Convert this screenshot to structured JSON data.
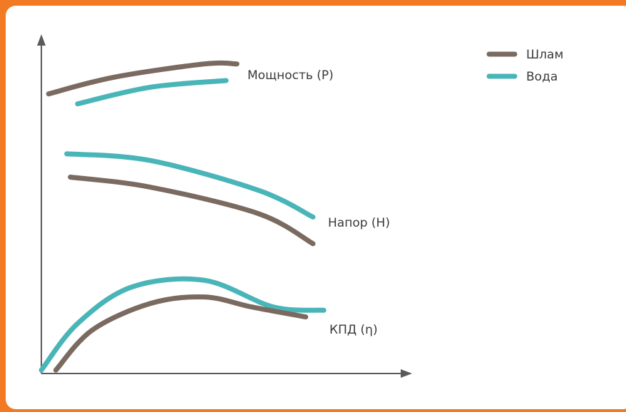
{
  "colors": {
    "frame": "#f27a24",
    "background": "#ffffff",
    "slurry": "#7a6a60",
    "water": "#4ab5b8",
    "axis": "#5a5a5a",
    "text": "#3a3a3a"
  },
  "legend": {
    "placement": "top-right",
    "items": [
      {
        "label": "Шлам",
        "color": "#7a6a60"
      },
      {
        "label": "Вода",
        "color": "#4ab5b8"
      }
    ]
  },
  "chart_data": {
    "type": "line",
    "xlabel": "",
    "ylabel": "",
    "xlim": [
      0,
      100
    ],
    "ylim": [
      0,
      100
    ],
    "grid": false,
    "ticks": false,
    "curve_labels": {
      "power": "Мощность (P)",
      "head": "Напор (H)",
      "efficiency": "КПД (η)"
    },
    "curves": [
      {
        "group": "power",
        "series": "Шлам",
        "points": [
          [
            2,
            84
          ],
          [
            20,
            89
          ],
          [
            45,
            93
          ],
          [
            54,
            93
          ]
        ]
      },
      {
        "group": "power",
        "series": "Вода",
        "points": [
          [
            10,
            81
          ],
          [
            30,
            86
          ],
          [
            51,
            88
          ]
        ]
      },
      {
        "group": "head",
        "series": "Вода",
        "points": [
          [
            7,
            66
          ],
          [
            30,
            64
          ],
          [
            60,
            55
          ],
          [
            75,
            47
          ]
        ]
      },
      {
        "group": "head",
        "series": "Шлам",
        "points": [
          [
            8,
            59
          ],
          [
            30,
            56
          ],
          [
            60,
            48
          ],
          [
            75,
            39
          ]
        ]
      },
      {
        "group": "efficiency",
        "series": "Вода",
        "points": [
          [
            0,
            1
          ],
          [
            10,
            15
          ],
          [
            25,
            26
          ],
          [
            45,
            28
          ],
          [
            64,
            20
          ],
          [
            78,
            19
          ]
        ]
      },
      {
        "group": "efficiency",
        "series": "Шлам",
        "points": [
          [
            4,
            1
          ],
          [
            14,
            13
          ],
          [
            30,
            21
          ],
          [
            45,
            23
          ],
          [
            58,
            20
          ],
          [
            73,
            17
          ]
        ]
      }
    ]
  }
}
